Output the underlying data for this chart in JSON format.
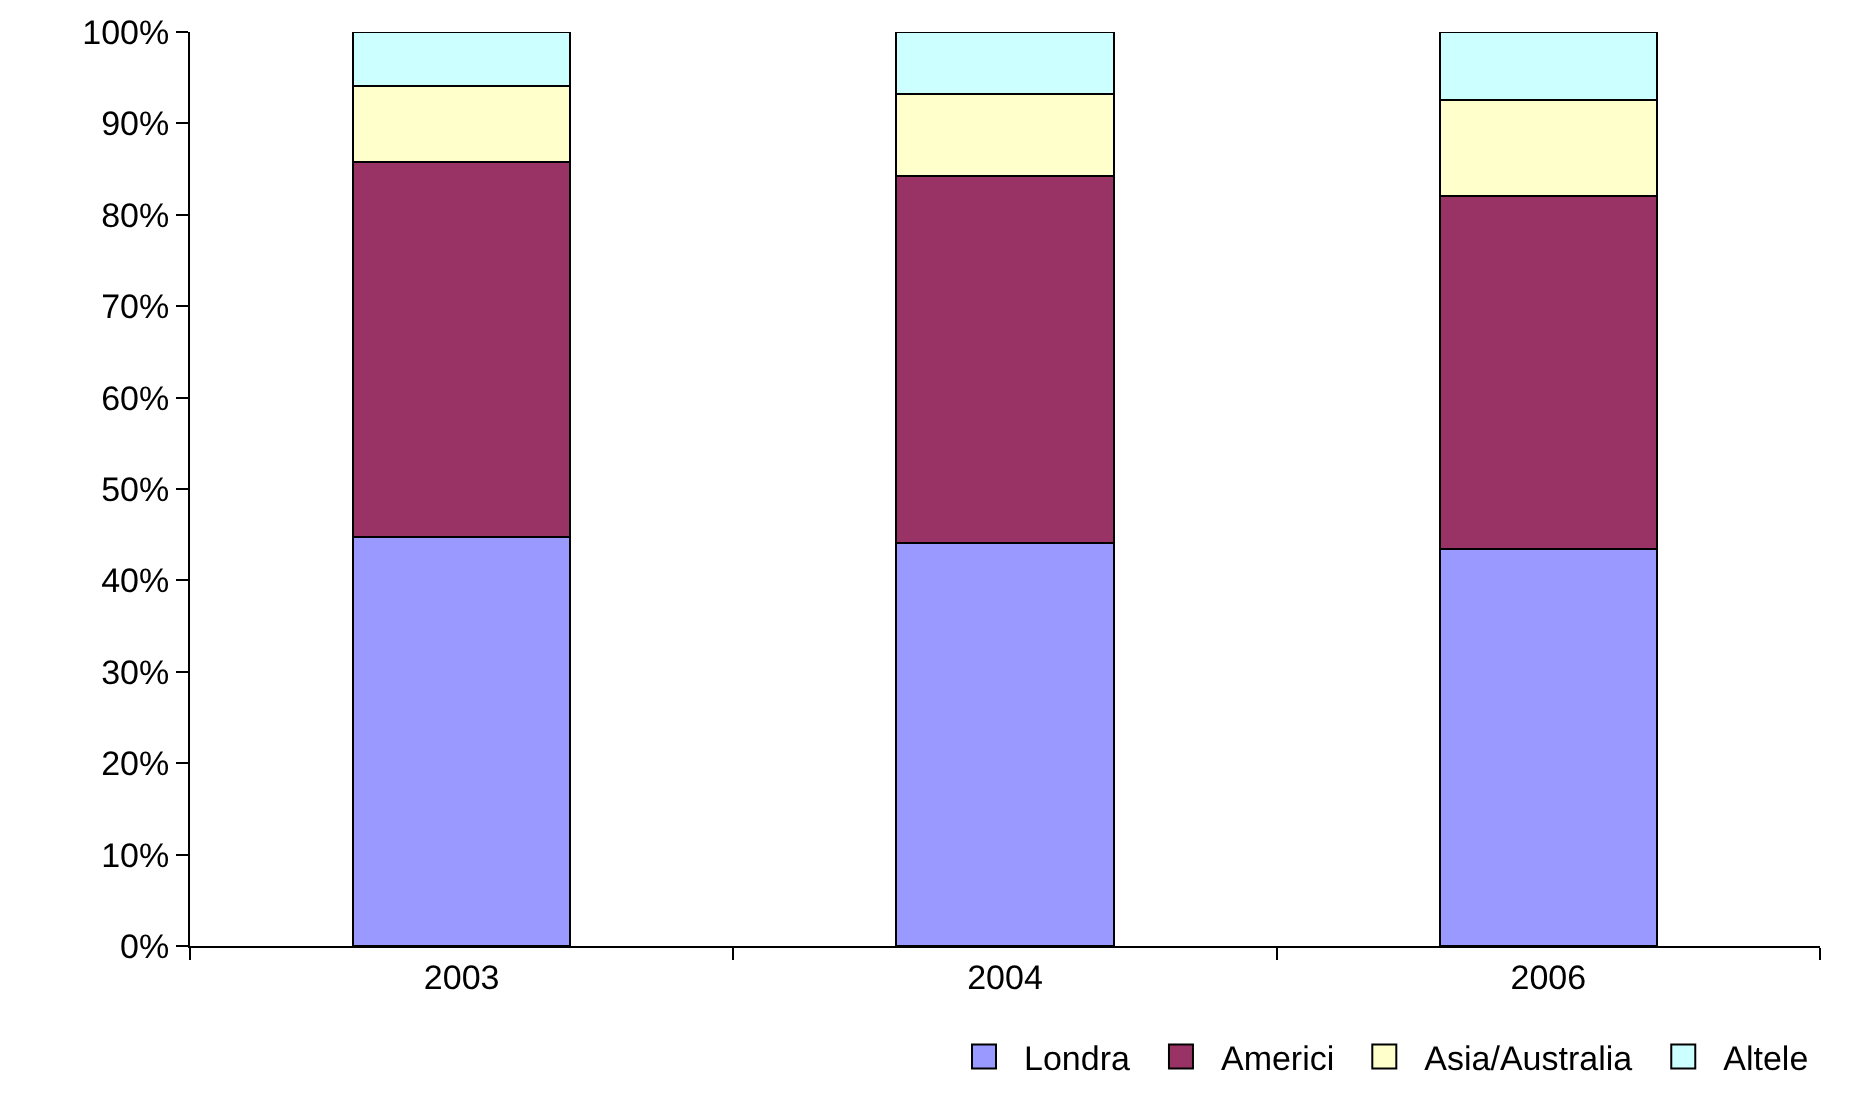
{
  "chart_data": {
    "type": "bar",
    "stacked": true,
    "categories": [
      "2003",
      "2004",
      "2006"
    ],
    "series": [
      {
        "name": "Londra",
        "color": "#9999ff",
        "values": [
          44.8,
          44.1,
          43.4
        ]
      },
      {
        "name": "Americi",
        "color": "#993366",
        "values": [
          41.0,
          40.2,
          38.7
        ]
      },
      {
        "name": "Asia/Australia",
        "color": "#ffffcc",
        "values": [
          8.3,
          8.9,
          10.5
        ]
      },
      {
        "name": "Altele",
        "color": "#ccffff",
        "values": [
          5.9,
          6.8,
          7.4
        ]
      }
    ],
    "ylim": [
      0,
      100
    ],
    "yticks": [
      {
        "value": 0,
        "label": "0%"
      },
      {
        "value": 10,
        "label": "10%"
      },
      {
        "value": 20,
        "label": "20%"
      },
      {
        "value": 30,
        "label": "30%"
      },
      {
        "value": 40,
        "label": "40%"
      },
      {
        "value": 50,
        "label": "50%"
      },
      {
        "value": 60,
        "label": "60%"
      },
      {
        "value": 70,
        "label": "70%"
      },
      {
        "value": 80,
        "label": "80%"
      },
      {
        "value": 90,
        "label": "90%"
      },
      {
        "value": 100,
        "label": "100%"
      }
    ],
    "grid": false,
    "legend": "bottom right"
  }
}
